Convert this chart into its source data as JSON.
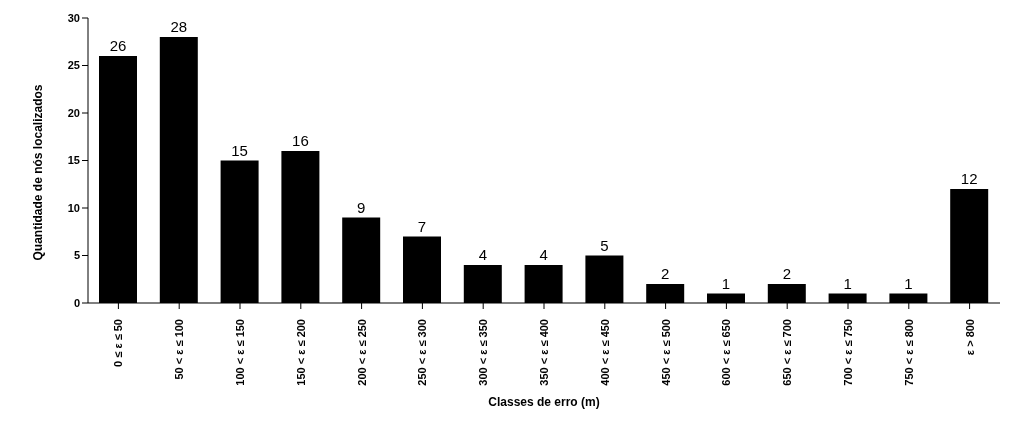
{
  "chart_data": {
    "type": "bar",
    "xlabel": "Classes de erro (m)",
    "ylabel": "Quantidade de nós localizados",
    "categories": [
      "0 ≤ ε ≤ 50",
      "50 < ε ≤ 100",
      "100 < ε ≤ 150",
      "150 < ε ≤ 200",
      "200 < ε ≤ 250",
      "250 < ε ≤ 300",
      "300 < ε ≤ 350",
      "350 < ε ≤ 400",
      "400 < ε ≤ 450",
      "450 < ε ≤ 500",
      "600 < ε ≤ 650",
      "650 < ε ≤ 700",
      "700 < ε ≤ 750",
      "750 < ε ≤ 800",
      "ε > 800"
    ],
    "values": [
      26,
      28,
      15,
      16,
      9,
      7,
      4,
      4,
      5,
      2,
      1,
      2,
      1,
      1,
      12
    ],
    "color": "#000000",
    "ylim": [
      0,
      30
    ],
    "yticks": [
      0,
      5,
      10,
      15,
      20,
      25,
      30
    ],
    "grid": false,
    "legend": false,
    "data_labels": true
  }
}
